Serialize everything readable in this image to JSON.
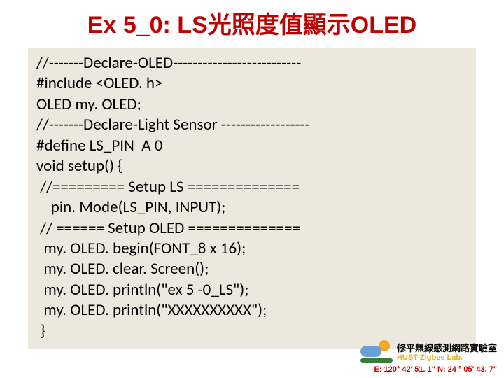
{
  "title": "Ex 5_0:  LS光照度值顯示OLED",
  "code_lines": [
    "//-------Declare-OLED--------------------------",
    "#include <OLED. h>",
    "OLED my. OLED;",
    "//-------Declare-Light Sensor ------------------",
    "#define LS_PIN  A 0",
    "void setup() {",
    " //========= Setup LS ==============",
    "    pin. Mode(LS_PIN, INPUT);",
    " // ====== Setup OLED ==============",
    "  my. OLED. begin(FONT_8 x 16);",
    "  my. OLED. clear. Screen();",
    "  my. OLED. println(\"ex 5 -0_LS\");",
    "  my. OLED. println(\"XXXXXXXXXX\");",
    " }"
  ],
  "footer": {
    "line1": "修平無線感測網路實驗室",
    "line2": "HUST Zigbee Lab.",
    "coords": "E: 120° 42' 51. 1\"  N: 24 ° 05' 43. 7\""
  },
  "colors": {
    "title": "#c00000",
    "code_bg": "#ece8de",
    "footer_accent": "#e0b020",
    "coords": "#c00000"
  }
}
